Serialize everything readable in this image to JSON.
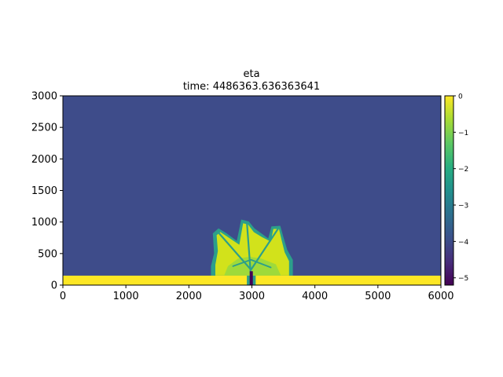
{
  "chart_data": {
    "type": "heatmap",
    "title": "eta",
    "subtitle": "time: 4486363.636363641",
    "xlabel": "",
    "ylabel": "",
    "xlim": [
      0,
      6000
    ],
    "ylim": [
      0,
      3000
    ],
    "x_ticks": [
      "0",
      "1000",
      "2000",
      "3000",
      "4000",
      "5000",
      "6000"
    ],
    "y_ticks": [
      "0",
      "500",
      "1000",
      "1500",
      "2000",
      "2500",
      "3000"
    ],
    "colorbar": {
      "range": [
        -5.2,
        0
      ],
      "ticks": [
        "0",
        "−1",
        "−2",
        "−3",
        "−4",
        "−5"
      ],
      "colormap": "viridis",
      "placement": "right"
    },
    "background_value": -4,
    "bottom_band": {
      "y_range": [
        0,
        150
      ],
      "value": 0
    },
    "colors": {
      "background": "#3e4c8a",
      "band": "#fde725",
      "light_green": "#d2e21b",
      "green": "#9fda3a",
      "teal": "#2c9f8a",
      "dark": "#440154"
    }
  }
}
